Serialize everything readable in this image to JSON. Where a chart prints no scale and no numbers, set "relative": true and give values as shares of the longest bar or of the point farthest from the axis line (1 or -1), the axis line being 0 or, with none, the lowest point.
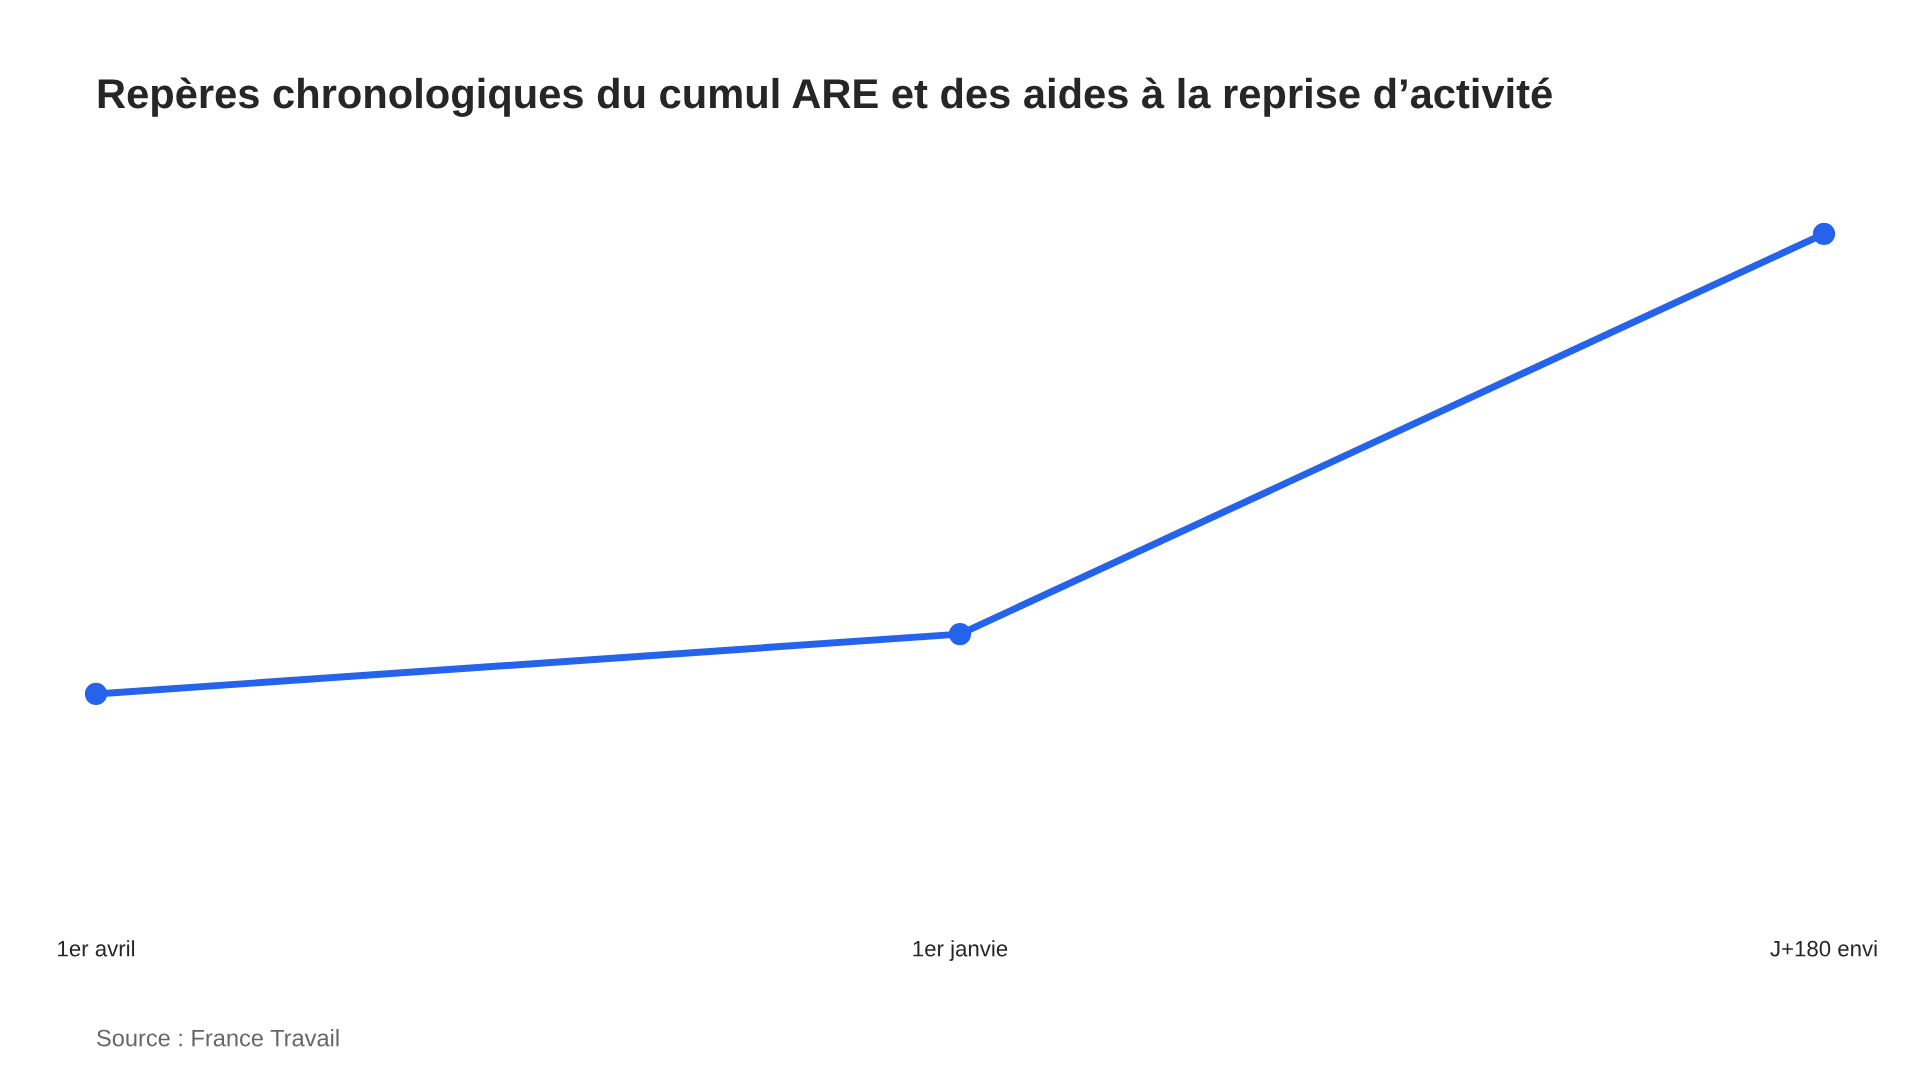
{
  "chart_data": {
    "type": "line",
    "title": "Repères chronologiques du cumul ARE et des aides à la reprise d’activité",
    "categories": [
      "1er avril",
      "1er janvie",
      "J+180 envi"
    ],
    "relative": true,
    "series": [
      {
        "color": "#2563eb",
        "values": [
          0,
          0.13,
          1
        ]
      }
    ],
    "marker": "circle",
    "line_style": "solid",
    "grid": false,
    "legend": false,
    "tick_labels": "x",
    "annotations": [
      "Source : France Travail"
    ]
  }
}
